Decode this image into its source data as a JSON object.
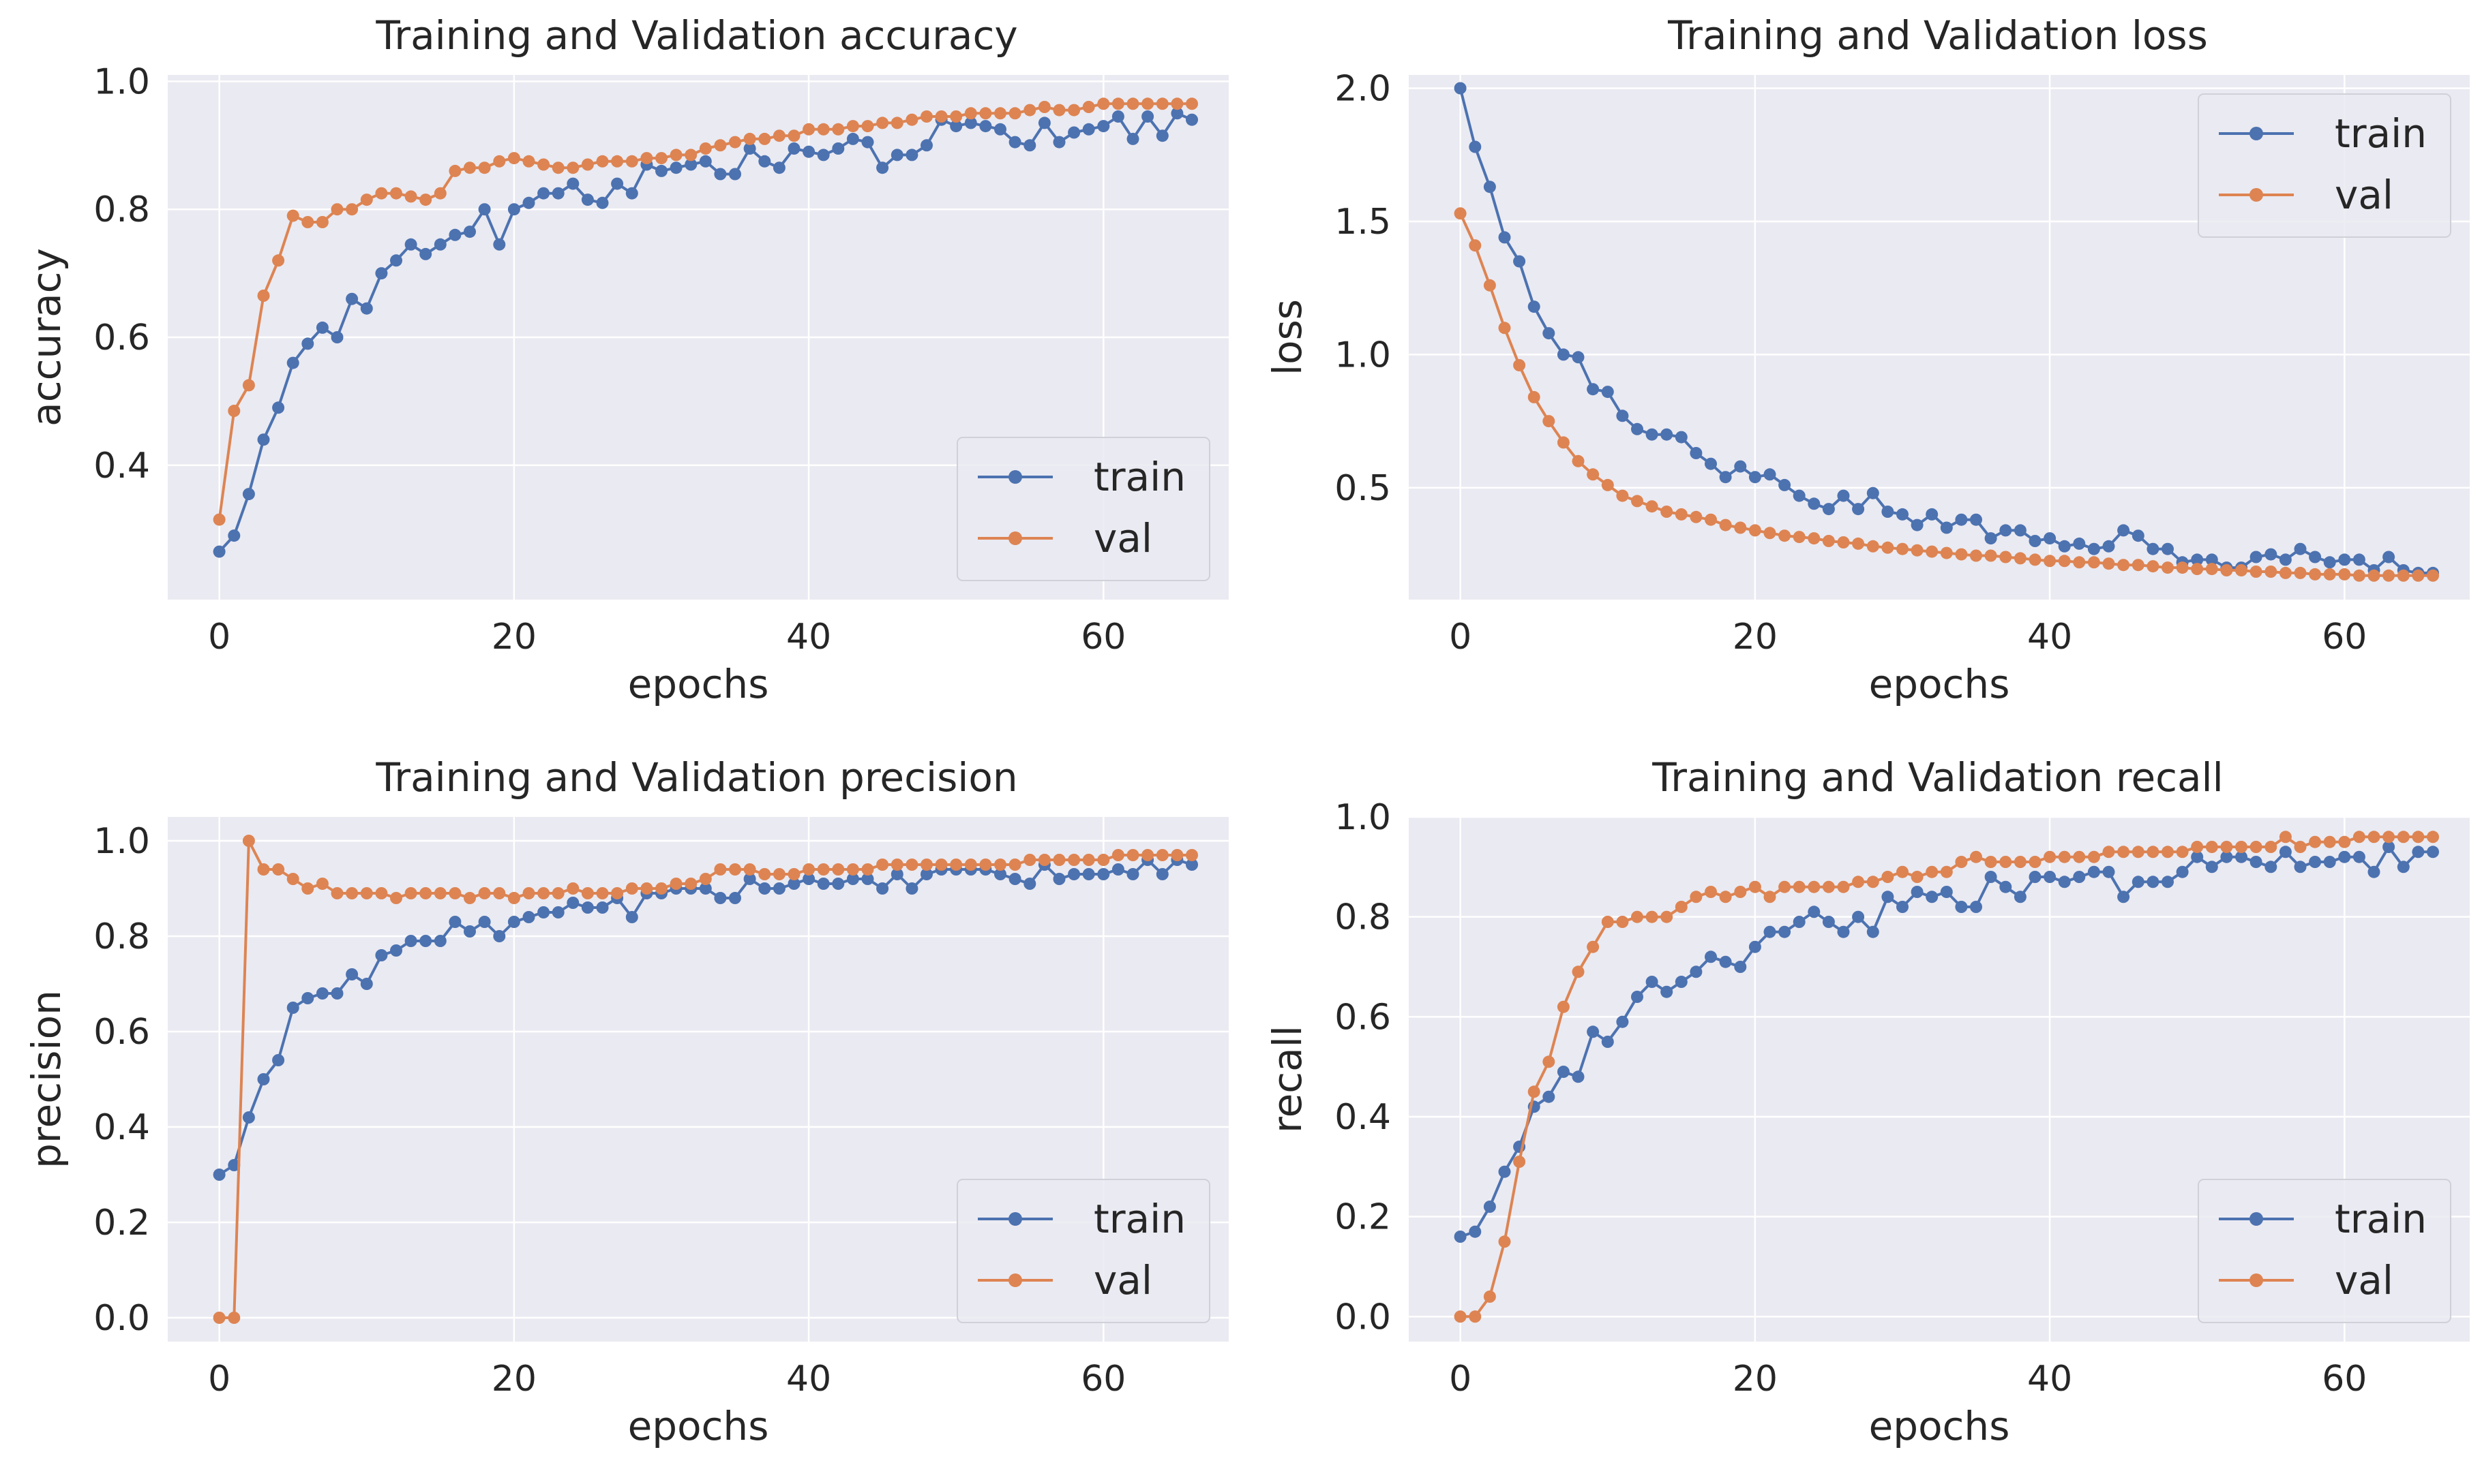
{
  "colors": {
    "train": "#4c72b0",
    "val": "#dd8452",
    "plot_bg": "#eaeaf2"
  },
  "chart_data": [
    {
      "type": "line",
      "title": "Training and Validation accuracy",
      "xlabel": "epochs",
      "ylabel": "accuracy",
      "xlim": [
        -3.5,
        68.5
      ],
      "ylim": [
        0.19,
        1.01
      ],
      "xticks": [
        0,
        20,
        40,
        60
      ],
      "xtick_labels": [
        "0",
        "20",
        "40",
        "60"
      ],
      "yticks": [
        0.4,
        0.6,
        0.8,
        1.0
      ],
      "ytick_labels": [
        "0.4",
        "0.6",
        "0.8",
        "1.0"
      ],
      "legend": "lower right",
      "series": [
        {
          "name": "train",
          "values": [
            0.265,
            0.29,
            0.355,
            0.44,
            0.49,
            0.56,
            0.59,
            0.615,
            0.6,
            0.66,
            0.645,
            0.7,
            0.72,
            0.745,
            0.73,
            0.745,
            0.76,
            0.765,
            0.8,
            0.745,
            0.8,
            0.81,
            0.825,
            0.825,
            0.84,
            0.815,
            0.81,
            0.84,
            0.825,
            0.87,
            0.86,
            0.865,
            0.87,
            0.875,
            0.855,
            0.855,
            0.895,
            0.875,
            0.865,
            0.895,
            0.89,
            0.885,
            0.895,
            0.91,
            0.905,
            0.865,
            0.885,
            0.885,
            0.9,
            0.94,
            0.93,
            0.935,
            0.93,
            0.925,
            0.905,
            0.9,
            0.935,
            0.905,
            0.92,
            0.925,
            0.93,
            0.945,
            0.91,
            0.945,
            0.915,
            0.95,
            0.94
          ]
        },
        {
          "name": "val",
          "values": [
            0.315,
            0.485,
            0.525,
            0.665,
            0.72,
            0.79,
            0.78,
            0.78,
            0.8,
            0.8,
            0.815,
            0.825,
            0.825,
            0.82,
            0.815,
            0.825,
            0.86,
            0.865,
            0.865,
            0.875,
            0.88,
            0.875,
            0.87,
            0.865,
            0.865,
            0.87,
            0.875,
            0.875,
            0.875,
            0.88,
            0.88,
            0.885,
            0.885,
            0.895,
            0.9,
            0.905,
            0.91,
            0.91,
            0.915,
            0.915,
            0.925,
            0.925,
            0.925,
            0.93,
            0.93,
            0.935,
            0.935,
            0.94,
            0.945,
            0.945,
            0.945,
            0.95,
            0.95,
            0.95,
            0.95,
            0.955,
            0.96,
            0.955,
            0.955,
            0.96,
            0.965,
            0.965,
            0.965,
            0.965,
            0.965,
            0.965,
            0.965
          ]
        }
      ]
    },
    {
      "type": "line",
      "title": "Training and Validation loss",
      "xlabel": "epochs",
      "ylabel": "loss",
      "xlim": [
        -3.5,
        68.5
      ],
      "ylim": [
        0.08,
        2.05
      ],
      "xticks": [
        0,
        20,
        40,
        60
      ],
      "xtick_labels": [
        "0",
        "20",
        "40",
        "60"
      ],
      "yticks": [
        0.5,
        1.0,
        1.5,
        2.0
      ],
      "ytick_labels": [
        "0.5",
        "1.0",
        "1.5",
        "2.0"
      ],
      "legend": "upper right",
      "series": [
        {
          "name": "train",
          "values": [
            2.0,
            1.78,
            1.63,
            1.44,
            1.35,
            1.18,
            1.08,
            1.0,
            0.99,
            0.87,
            0.86,
            0.77,
            0.72,
            0.7,
            0.7,
            0.69,
            0.63,
            0.59,
            0.54,
            0.58,
            0.54,
            0.55,
            0.51,
            0.47,
            0.44,
            0.42,
            0.47,
            0.42,
            0.48,
            0.41,
            0.4,
            0.36,
            0.4,
            0.35,
            0.38,
            0.38,
            0.31,
            0.34,
            0.34,
            0.3,
            0.31,
            0.28,
            0.29,
            0.27,
            0.28,
            0.34,
            0.32,
            0.27,
            0.27,
            0.22,
            0.23,
            0.23,
            0.2,
            0.2,
            0.24,
            0.25,
            0.23,
            0.27,
            0.24,
            0.22,
            0.23,
            0.23,
            0.19,
            0.24,
            0.19,
            0.18,
            0.18
          ]
        },
        {
          "name": "val",
          "values": [
            1.53,
            1.41,
            1.26,
            1.1,
            0.96,
            0.84,
            0.75,
            0.67,
            0.6,
            0.55,
            0.51,
            0.47,
            0.45,
            0.43,
            0.41,
            0.4,
            0.39,
            0.38,
            0.36,
            0.35,
            0.34,
            0.33,
            0.32,
            0.315,
            0.31,
            0.3,
            0.295,
            0.29,
            0.28,
            0.275,
            0.27,
            0.265,
            0.26,
            0.255,
            0.25,
            0.245,
            0.245,
            0.24,
            0.235,
            0.23,
            0.225,
            0.225,
            0.22,
            0.22,
            0.215,
            0.21,
            0.21,
            0.205,
            0.2,
            0.2,
            0.195,
            0.195,
            0.19,
            0.19,
            0.185,
            0.185,
            0.18,
            0.18,
            0.175,
            0.175,
            0.175,
            0.17,
            0.17,
            0.17,
            0.17,
            0.17,
            0.17
          ]
        }
      ]
    },
    {
      "type": "line",
      "title": "Training and Validation precision",
      "xlabel": "epochs",
      "ylabel": "precision",
      "xlim": [
        -3.5,
        68.5
      ],
      "ylim": [
        -0.05,
        1.05
      ],
      "xticks": [
        0,
        20,
        40,
        60
      ],
      "xtick_labels": [
        "0",
        "20",
        "40",
        "60"
      ],
      "yticks": [
        0.0,
        0.2,
        0.4,
        0.6,
        0.8,
        1.0
      ],
      "ytick_labels": [
        "0.0",
        "0.2",
        "0.4",
        "0.6",
        "0.8",
        "1.0"
      ],
      "legend": "lower right",
      "series": [
        {
          "name": "train",
          "values": [
            0.3,
            0.32,
            0.42,
            0.5,
            0.54,
            0.65,
            0.67,
            0.68,
            0.68,
            0.72,
            0.7,
            0.76,
            0.77,
            0.79,
            0.79,
            0.79,
            0.83,
            0.81,
            0.83,
            0.8,
            0.83,
            0.84,
            0.85,
            0.85,
            0.87,
            0.86,
            0.86,
            0.88,
            0.84,
            0.89,
            0.89,
            0.9,
            0.9,
            0.9,
            0.88,
            0.88,
            0.92,
            0.9,
            0.9,
            0.91,
            0.92,
            0.91,
            0.91,
            0.92,
            0.92,
            0.9,
            0.93,
            0.9,
            0.93,
            0.94,
            0.94,
            0.94,
            0.94,
            0.93,
            0.92,
            0.91,
            0.95,
            0.92,
            0.93,
            0.93,
            0.93,
            0.94,
            0.93,
            0.96,
            0.93,
            0.96,
            0.95
          ]
        },
        {
          "name": "val",
          "values": [
            0.0,
            0.0,
            1.0,
            0.94,
            0.94,
            0.92,
            0.9,
            0.91,
            0.89,
            0.89,
            0.89,
            0.89,
            0.88,
            0.89,
            0.89,
            0.89,
            0.89,
            0.88,
            0.89,
            0.89,
            0.88,
            0.89,
            0.89,
            0.89,
            0.9,
            0.89,
            0.89,
            0.89,
            0.9,
            0.9,
            0.9,
            0.91,
            0.91,
            0.92,
            0.94,
            0.94,
            0.94,
            0.93,
            0.93,
            0.93,
            0.94,
            0.94,
            0.94,
            0.94,
            0.94,
            0.95,
            0.95,
            0.95,
            0.95,
            0.95,
            0.95,
            0.95,
            0.95,
            0.95,
            0.95,
            0.96,
            0.96,
            0.96,
            0.96,
            0.96,
            0.96,
            0.97,
            0.97,
            0.97,
            0.97,
            0.97,
            0.97
          ]
        }
      ]
    },
    {
      "type": "line",
      "title": "Training and Validation recall",
      "xlabel": "epochs",
      "ylabel": "recall",
      "xlim": [
        -3.5,
        68.5
      ],
      "ylim": [
        -0.05,
        1.0
      ],
      "xticks": [
        0,
        20,
        40,
        60
      ],
      "xtick_labels": [
        "0",
        "20",
        "40",
        "60"
      ],
      "yticks": [
        0.0,
        0.2,
        0.4,
        0.6,
        0.8,
        1.0
      ],
      "ytick_labels": [
        "0.0",
        "0.2",
        "0.4",
        "0.6",
        "0.8",
        "1.0"
      ],
      "legend": "lower right",
      "series": [
        {
          "name": "train",
          "values": [
            0.16,
            0.17,
            0.22,
            0.29,
            0.34,
            0.42,
            0.44,
            0.49,
            0.48,
            0.57,
            0.55,
            0.59,
            0.64,
            0.67,
            0.65,
            0.67,
            0.69,
            0.72,
            0.71,
            0.7,
            0.74,
            0.77,
            0.77,
            0.79,
            0.81,
            0.79,
            0.77,
            0.8,
            0.77,
            0.84,
            0.82,
            0.85,
            0.84,
            0.85,
            0.82,
            0.82,
            0.88,
            0.86,
            0.84,
            0.88,
            0.88,
            0.87,
            0.88,
            0.89,
            0.89,
            0.84,
            0.87,
            0.87,
            0.87,
            0.89,
            0.92,
            0.9,
            0.92,
            0.92,
            0.91,
            0.9,
            0.93,
            0.9,
            0.91,
            0.91,
            0.92,
            0.92,
            0.89,
            0.94,
            0.9,
            0.93,
            0.93
          ]
        },
        {
          "name": "val",
          "values": [
            0.0,
            0.0,
            0.04,
            0.15,
            0.31,
            0.45,
            0.51,
            0.62,
            0.69,
            0.74,
            0.79,
            0.79,
            0.8,
            0.8,
            0.8,
            0.82,
            0.84,
            0.85,
            0.84,
            0.85,
            0.86,
            0.84,
            0.86,
            0.86,
            0.86,
            0.86,
            0.86,
            0.87,
            0.87,
            0.88,
            0.89,
            0.88,
            0.89,
            0.89,
            0.91,
            0.92,
            0.91,
            0.91,
            0.91,
            0.91,
            0.92,
            0.92,
            0.92,
            0.92,
            0.93,
            0.93,
            0.93,
            0.93,
            0.93,
            0.93,
            0.94,
            0.94,
            0.94,
            0.94,
            0.94,
            0.94,
            0.96,
            0.94,
            0.95,
            0.95,
            0.95,
            0.96,
            0.96,
            0.96,
            0.96,
            0.96,
            0.96
          ]
        }
      ]
    }
  ]
}
